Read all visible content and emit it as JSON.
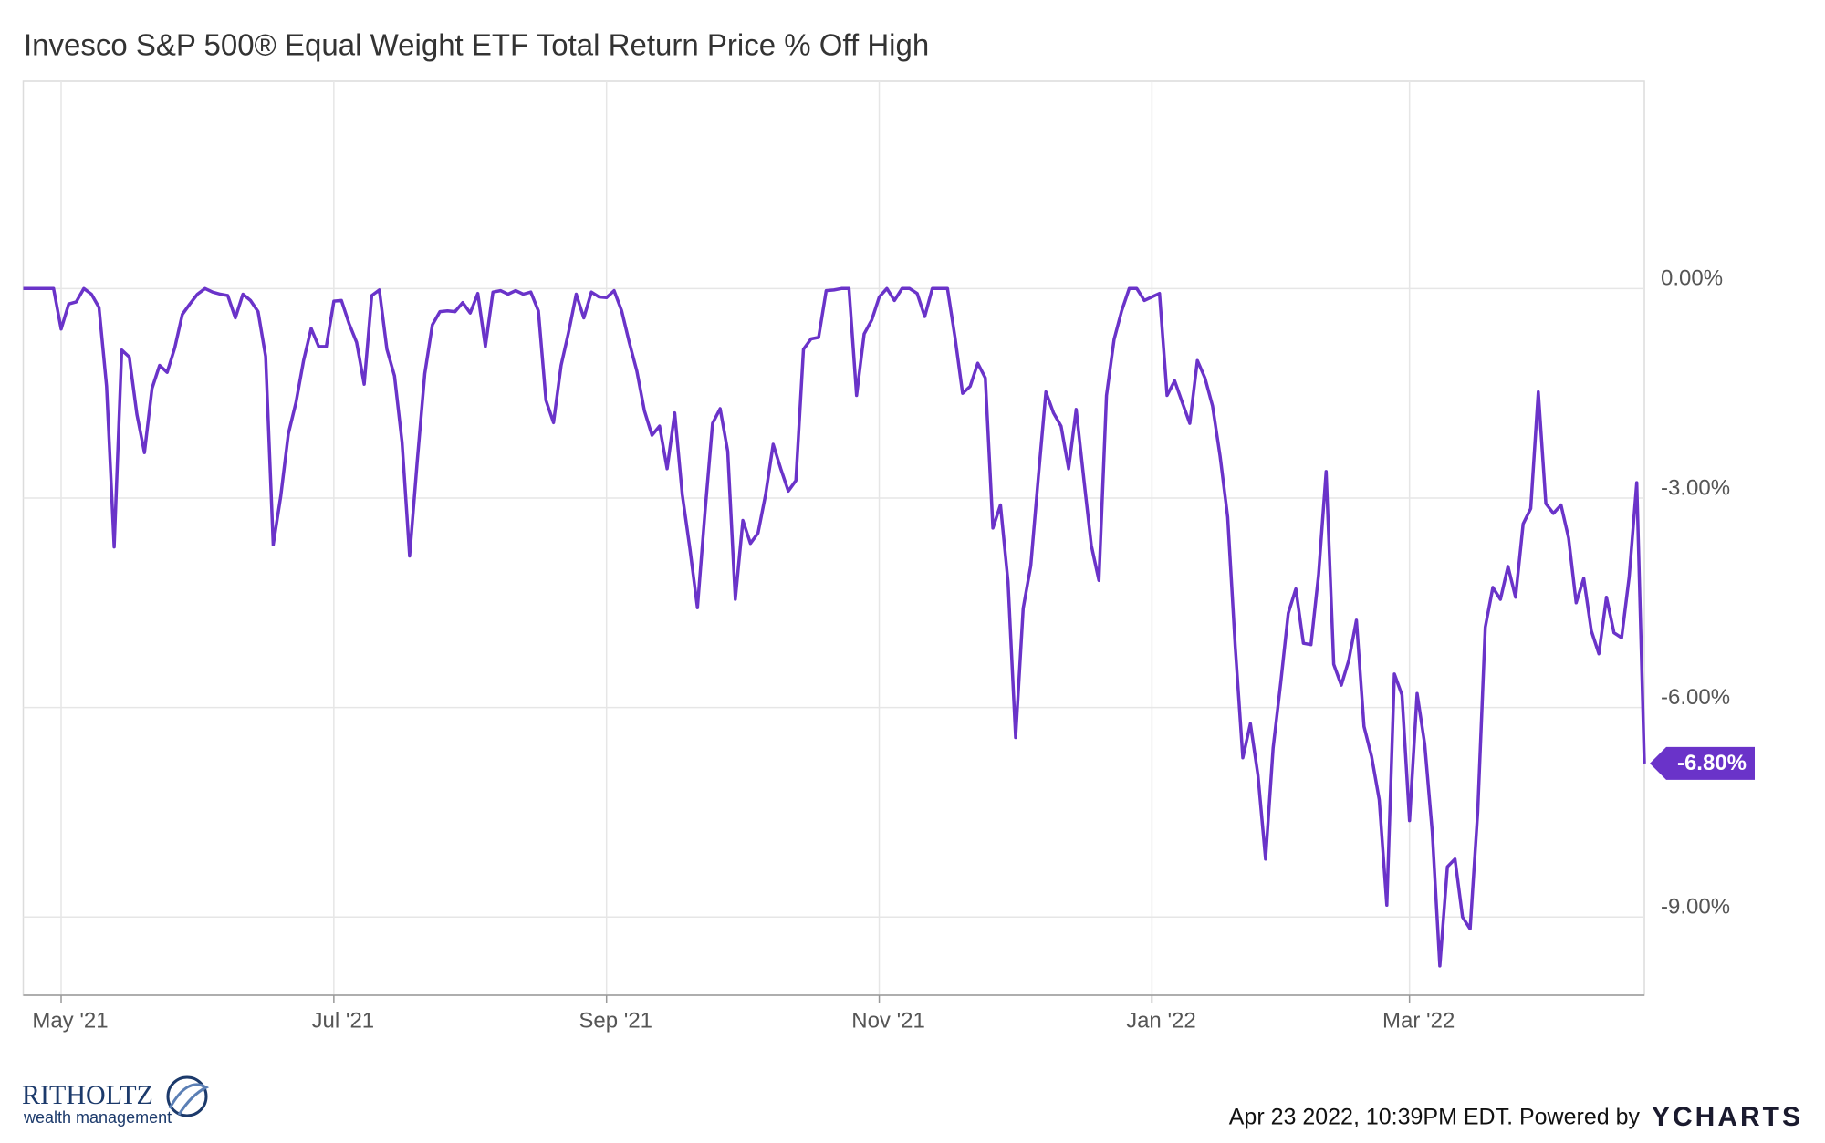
{
  "chart_data": {
    "type": "line",
    "title": "Invesco S&P 500® Equal Weight ETF Total Return Price % Off High",
    "categories": [
      null,
      null,
      null,
      null,
      null,
      "May '21",
      null,
      null,
      null,
      null,
      null,
      null,
      null,
      null,
      null,
      null,
      null,
      null,
      null,
      null,
      null,
      null,
      null,
      null,
      null,
      null,
      null,
      null,
      null,
      null,
      null,
      null,
      null,
      null,
      null,
      null,
      null,
      null,
      null,
      null,
      null,
      "Jul '21",
      null,
      null,
      null,
      null,
      null,
      null,
      null,
      null,
      null,
      null,
      null,
      null,
      null,
      null,
      null,
      null,
      null,
      null,
      null,
      null,
      null,
      null,
      null,
      null,
      null,
      null,
      null,
      null,
      null,
      null,
      null,
      null,
      null,
      null,
      null,
      "Sep '21",
      null,
      null,
      null,
      null,
      null,
      null,
      null,
      null,
      null,
      null,
      null,
      null,
      null,
      null,
      null,
      null,
      null,
      null,
      null,
      null,
      null,
      null,
      null,
      null,
      null,
      null,
      null,
      null,
      null,
      null,
      null,
      null,
      null,
      null,
      null,
      "Nov '21",
      null,
      null,
      null,
      null,
      null,
      null,
      null,
      null,
      null,
      null,
      null,
      null,
      null,
      null,
      null,
      null,
      null,
      null,
      null,
      null,
      null,
      null,
      null,
      null,
      null,
      null,
      null,
      null,
      null,
      null,
      null,
      null,
      null,
      null,
      null,
      "Jan '22",
      null,
      null,
      null,
      null,
      null,
      null,
      null,
      null,
      null,
      null,
      null,
      null,
      null,
      null,
      null,
      null,
      null,
      null,
      null,
      null,
      null,
      null,
      null,
      null,
      null,
      null,
      null,
      null,
      null,
      null,
      null,
      null,
      null,
      "Mar '22",
      null,
      null,
      null,
      null,
      null,
      null,
      null,
      null,
      null,
      null,
      null,
      null,
      null,
      null,
      null,
      null,
      null,
      null,
      null,
      null,
      null,
      null,
      null,
      null,
      null,
      null,
      null,
      null,
      null,
      null,
      null
    ],
    "series": [
      {
        "name": "Invesco S&P 500® Equal Weight ETF Total Return Price % Off High",
        "color": "#6a33c9",
        "values": [
          0,
          0,
          0,
          0,
          0,
          -0.58,
          -0.22,
          -0.19,
          0,
          -0.08,
          -0.27,
          -1.4,
          -3.7,
          -0.88,
          -0.98,
          -1.8,
          -2.35,
          -1.43,
          -1.1,
          -1.2,
          -0.85,
          -0.37,
          -0.22,
          -0.08,
          0,
          -0.05,
          -0.08,
          -0.1,
          -0.42,
          -0.08,
          -0.17,
          -0.33,
          -0.97,
          -3.67,
          -2.97,
          -2.08,
          -1.63,
          -1.03,
          -0.57,
          -0.83,
          -0.83,
          -0.18,
          -0.17,
          -0.5,
          -0.77,
          -1.37,
          -0.1,
          -0.02,
          -0.87,
          -1.25,
          -2.2,
          -3.83,
          -2.48,
          -1.22,
          -0.52,
          -0.33,
          -0.32,
          -0.33,
          -0.2,
          -0.35,
          -0.07,
          -0.83,
          -0.05,
          -0.03,
          -0.08,
          -0.03,
          -0.08,
          -0.05,
          -0.32,
          -1.6,
          -1.92,
          -1.1,
          -0.62,
          -0.08,
          -0.42,
          -0.05,
          -0.12,
          -0.13,
          -0.03,
          -0.32,
          -0.77,
          -1.18,
          -1.75,
          -2.1,
          -1.97,
          -2.58,
          -1.78,
          -2.95,
          -3.72,
          -4.57,
          -3.2,
          -1.93,
          -1.72,
          -2.33,
          -4.45,
          -3.32,
          -3.65,
          -3.5,
          -2.95,
          -2.23,
          -2.58,
          -2.9,
          -2.75,
          -0.87,
          -0.72,
          -0.7,
          -0.03,
          -0.02,
          0,
          0,
          -1.53,
          -0.65,
          -0.45,
          -0.12,
          0,
          -0.17,
          0,
          0,
          -0.07,
          -0.4,
          0,
          0,
          0,
          -0.7,
          -1.5,
          -1.4,
          -1.07,
          -1.28,
          -3.43,
          -3.1,
          -4.2,
          -6.43,
          -4.58,
          -3.97,
          -2.7,
          -1.48,
          -1.78,
          -1.97,
          -2.58,
          -1.73,
          -2.72,
          -3.68,
          -4.18,
          -1.53,
          -0.73,
          -0.32,
          0,
          0,
          -0.17,
          -0.12,
          -0.07,
          -1.53,
          -1.32,
          -1.63,
          -1.93,
          -1.03,
          -1.28,
          -1.68,
          -2.4,
          -3.27,
          -5.13,
          -6.72,
          -6.23,
          -6.97,
          -8.17,
          -6.58,
          -5.65,
          -4.65,
          -4.3,
          -5.08,
          -5.1,
          -4.1,
          -2.62,
          -5.38,
          -5.68,
          -5.32,
          -4.75,
          -6.27,
          -6.7,
          -7.32,
          -8.83,
          -5.52,
          -5.82,
          -7.62,
          -5.8,
          -6.52,
          -7.78,
          -9.7,
          -8.28,
          -8.17,
          -9.0,
          -9.17,
          -7.5,
          -4.85,
          -4.28,
          -4.45,
          -3.98,
          -4.42,
          -3.37,
          -3.15,
          -1.48,
          -3.08,
          -3.22,
          -3.1,
          -3.57,
          -4.5,
          -4.15,
          -4.9,
          -5.23,
          -4.42,
          -4.93,
          -5.0,
          -4.13,
          -2.78,
          -6.8
        ],
        "value_labels": [
          null,
          null,
          null,
          null,
          null,
          null,
          null,
          null,
          null,
          null,
          null,
          null,
          null,
          null,
          null,
          null,
          null,
          null,
          null,
          null,
          null,
          null,
          null,
          null,
          null,
          null,
          null,
          null,
          null,
          null,
          null,
          null,
          null,
          null,
          null,
          null,
          null,
          null,
          null,
          null,
          null,
          null,
          null,
          null,
          null,
          null,
          null,
          null,
          null,
          null,
          null,
          null,
          null,
          null,
          null,
          null,
          null,
          null,
          null,
          null,
          null,
          null,
          null,
          null,
          null,
          null,
          null,
          null,
          null,
          null,
          null,
          null,
          null,
          null,
          null,
          null,
          null,
          null,
          null,
          null,
          null,
          null,
          null,
          null,
          null,
          null,
          null,
          null,
          null,
          null,
          null,
          null,
          null,
          null,
          null,
          null,
          null,
          null,
          null,
          null,
          null,
          null,
          null,
          null,
          null,
          null,
          null,
          null,
          null,
          null,
          null,
          null,
          null,
          null,
          null,
          null,
          null,
          null,
          null,
          null,
          null,
          null,
          null,
          null,
          null,
          null,
          null,
          null,
          null,
          null,
          null,
          null,
          null,
          null,
          null,
          null,
          null,
          null,
          null,
          null,
          null,
          null,
          null,
          null,
          null,
          null,
          null,
          null,
          null,
          null,
          null,
          null,
          null,
          null,
          null,
          null,
          null,
          null,
          null,
          null,
          null,
          null,
          null,
          null,
          null,
          null,
          null,
          null,
          null,
          null,
          null,
          null,
          null,
          null,
          null,
          null,
          null,
          null,
          null,
          null,
          null,
          null,
          null,
          null,
          null,
          null,
          null,
          null,
          null,
          null,
          null,
          null,
          null,
          null,
          null,
          null,
          null,
          null,
          null,
          null,
          null,
          null,
          null,
          null,
          null,
          null,
          null,
          null,
          null,
          null,
          null,
          null,
          null,
          null,
          "-6.80%"
        ]
      }
    ],
    "ylim": [
      -10.12,
      2.97
    ],
    "yticks": [
      {
        "value": 0,
        "label": "0.00%"
      },
      {
        "value": -3,
        "label": "-3.00%"
      },
      {
        "value": -6,
        "label": "-6.00%"
      },
      {
        "value": -9,
        "label": "-9.00%"
      }
    ],
    "grid": true
  },
  "branding": {
    "logo_name": "RITHOLTZ",
    "logo_tagline": "wealth management",
    "timestamp": "Apr 23 2022, 10:39PM EDT. Powered by",
    "powered_by_logo": "YCHARTS"
  }
}
